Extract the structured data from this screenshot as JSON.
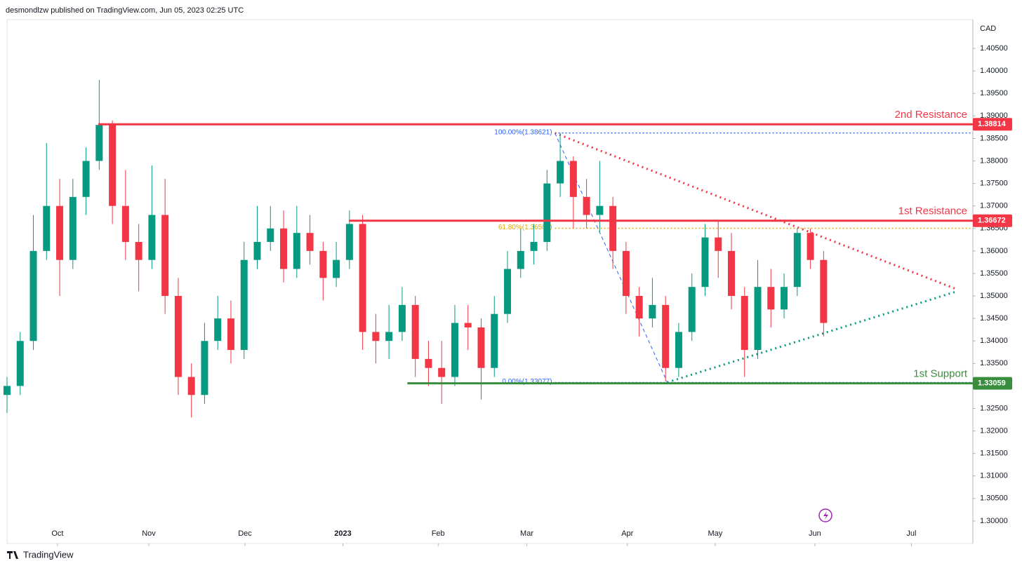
{
  "chart_data": {
    "type": "candlestick",
    "header": "desmondlzw published on TradingView.com, Jun 05, 2023 02:25 UTC",
    "currency": "CAD",
    "footer": "TradingView",
    "up_color": "#089981",
    "down_color": "#f23645",
    "xlim": [
      0,
      220
    ],
    "xticks": [
      {
        "value": 11.5,
        "label": "Oct"
      },
      {
        "value": 32.3,
        "label": "Nov"
      },
      {
        "value": 54.2,
        "label": "Dec"
      },
      {
        "value": 76.5,
        "label": "2023"
      },
      {
        "value": 98.2,
        "label": "Feb"
      },
      {
        "value": 118.4,
        "label": "Mar"
      },
      {
        "value": 141.3,
        "label": "Apr"
      },
      {
        "value": 161.3,
        "label": "May"
      },
      {
        "value": 184,
        "label": "Jun"
      },
      {
        "value": 206,
        "label": "Jul"
      }
    ],
    "ylim": [
      1.295,
      1.4114
    ],
    "yticks": [
      {
        "value": 1.3,
        "label": "1.30000"
      },
      {
        "value": 1.305,
        "label": "1.30500"
      },
      {
        "value": 1.31,
        "label": "1.31000"
      },
      {
        "value": 1.315,
        "label": "1.31500"
      },
      {
        "value": 1.32,
        "label": "1.32000"
      },
      {
        "value": 1.325,
        "label": "1.32500"
      },
      {
        "value": 1.33,
        "label": "1.33000"
      },
      {
        "value": 1.335,
        "label": "1.33500"
      },
      {
        "value": 1.34,
        "label": "1.34000"
      },
      {
        "value": 1.345,
        "label": "1.34500"
      },
      {
        "value": 1.35,
        "label": "1.35000"
      },
      {
        "value": 1.355,
        "label": "1.35500"
      },
      {
        "value": 1.36,
        "label": "1.36000"
      },
      {
        "value": 1.365,
        "label": "1.36500"
      },
      {
        "value": 1.37,
        "label": "1.37000"
      },
      {
        "value": 1.375,
        "label": "1.37500"
      },
      {
        "value": 1.38,
        "label": "1.38000"
      },
      {
        "value": 1.385,
        "label": "1.38500"
      },
      {
        "value": 1.39,
        "label": "1.39000"
      },
      {
        "value": 1.395,
        "label": "1.39500"
      },
      {
        "value": 1.4,
        "label": "1.40000"
      },
      {
        "value": 1.405,
        "label": "1.40500"
      }
    ],
    "x": [
      0,
      3,
      6,
      9,
      12,
      15,
      18,
      21,
      24,
      27,
      30,
      33,
      36,
      39,
      42,
      45,
      48,
      51,
      54,
      57,
      60,
      63,
      66,
      69,
      72,
      75,
      78,
      81,
      84,
      87,
      90,
      93,
      96,
      99,
      102,
      105,
      108,
      111,
      114,
      117,
      120,
      123,
      126,
      129,
      132,
      135,
      138,
      141,
      144,
      147,
      150,
      153,
      156,
      159,
      162,
      165,
      168,
      171,
      174,
      177,
      180,
      183,
      186
    ],
    "open": [
      1.328,
      1.33,
      1.34,
      1.36,
      1.37,
      1.358,
      1.372,
      1.38,
      1.388,
      1.37,
      1.362,
      1.358,
      1.368,
      1.35,
      1.332,
      1.328,
      1.34,
      1.345,
      1.338,
      1.358,
      1.362,
      1.365,
      1.356,
      1.364,
      1.36,
      1.354,
      1.358,
      1.366,
      1.342,
      1.34,
      1.342,
      1.348,
      1.336,
      1.334,
      1.332,
      1.344,
      1.343,
      1.334,
      1.346,
      1.356,
      1.36,
      1.362,
      1.375,
      1.38,
      1.372,
      1.368,
      1.37,
      1.36,
      1.35,
      1.345,
      1.348,
      1.334,
      1.342,
      1.352,
      1.363,
      1.36,
      1.35,
      1.338,
      1.352,
      1.347,
      1.352,
      1.364,
      1.358
    ],
    "high": [
      1.332,
      1.342,
      1.368,
      1.384,
      1.376,
      1.376,
      1.383,
      1.398,
      1.389,
      1.378,
      1.366,
      1.379,
      1.376,
      1.354,
      1.335,
      1.344,
      1.35,
      1.349,
      1.362,
      1.37,
      1.37,
      1.369,
      1.37,
      1.368,
      1.362,
      1.362,
      1.369,
      1.368,
      1.346,
      1.348,
      1.352,
      1.35,
      1.34,
      1.34,
      1.348,
      1.348,
      1.345,
      1.35,
      1.36,
      1.365,
      1.366,
      1.378,
      1.3862,
      1.381,
      1.376,
      1.38,
      1.372,
      1.362,
      1.352,
      1.354,
      1.35,
      1.344,
      1.355,
      1.366,
      1.3665,
      1.364,
      1.352,
      1.358,
      1.356,
      1.355,
      1.365,
      1.365,
      1.36
    ],
    "low": [
      1.324,
      1.328,
      1.338,
      1.358,
      1.35,
      1.356,
      1.368,
      1.378,
      1.366,
      1.358,
      1.351,
      1.356,
      1.346,
      1.328,
      1.323,
      1.326,
      1.338,
      1.335,
      1.336,
      1.356,
      1.36,
      1.353,
      1.354,
      1.357,
      1.349,
      1.352,
      1.356,
      1.338,
      1.335,
      1.336,
      1.34,
      1.332,
      1.33,
      1.326,
      1.33,
      1.338,
      1.327,
      1.332,
      1.344,
      1.354,
      1.357,
      1.36,
      1.372,
      1.365,
      1.365,
      1.364,
      1.356,
      1.346,
      1.341,
      1.343,
      1.331,
      1.332,
      1.34,
      1.35,
      1.354,
      1.347,
      1.332,
      1.336,
      1.343,
      1.345,
      1.35,
      1.356,
      1.341
    ],
    "close": [
      1.33,
      1.34,
      1.36,
      1.37,
      1.358,
      1.372,
      1.38,
      1.388,
      1.37,
      1.362,
      1.358,
      1.368,
      1.35,
      1.332,
      1.328,
      1.34,
      1.345,
      1.338,
      1.358,
      1.362,
      1.365,
      1.356,
      1.364,
      1.36,
      1.354,
      1.358,
      1.366,
      1.342,
      1.34,
      1.342,
      1.348,
      1.336,
      1.334,
      1.332,
      1.344,
      1.343,
      1.334,
      1.346,
      1.356,
      1.36,
      1.362,
      1.375,
      1.38,
      1.372,
      1.368,
      1.37,
      1.36,
      1.35,
      1.345,
      1.348,
      1.334,
      1.342,
      1.352,
      1.363,
      1.36,
      1.35,
      1.338,
      1.352,
      1.347,
      1.352,
      1.364,
      1.358,
      1.344
    ],
    "levels": [
      {
        "name": "2nd Resistance",
        "value": 1.38814,
        "start": 20.8,
        "color": "#f23645"
      },
      {
        "name": "1st Resistance",
        "value": 1.36672,
        "start": 77.9,
        "color": "#f23645"
      },
      {
        "name": "1st Support",
        "value": 1.33059,
        "start": 91.2,
        "color": "#388e3c"
      }
    ],
    "fib_start": 124.8,
    "fib_levels": [
      {
        "label": "100.00%(1.38621)",
        "value": 1.38621,
        "color": "#2962ff"
      },
      {
        "label": "61.80%(1.36505)",
        "value": 1.36505,
        "color": "#e0a800"
      },
      {
        "label": "0.00%(1.33077)",
        "value": 1.33077,
        "color": "#2962ff"
      }
    ],
    "trendlines": [
      {
        "color": "#f23645",
        "dash": "2 5",
        "x": [
          124.8,
          216.3
        ],
        "y": [
          1.3862,
          1.3515
        ]
      },
      {
        "color": "#089981",
        "dash": "2 5",
        "x": [
          150.4,
          216.3
        ],
        "y": [
          1.3308,
          1.351
        ]
      },
      {
        "color": "#2962ff",
        "dash": "5 4",
        "x": [
          124.8,
          150.4
        ],
        "y": [
          1.3862,
          1.3308
        ]
      }
    ]
  }
}
